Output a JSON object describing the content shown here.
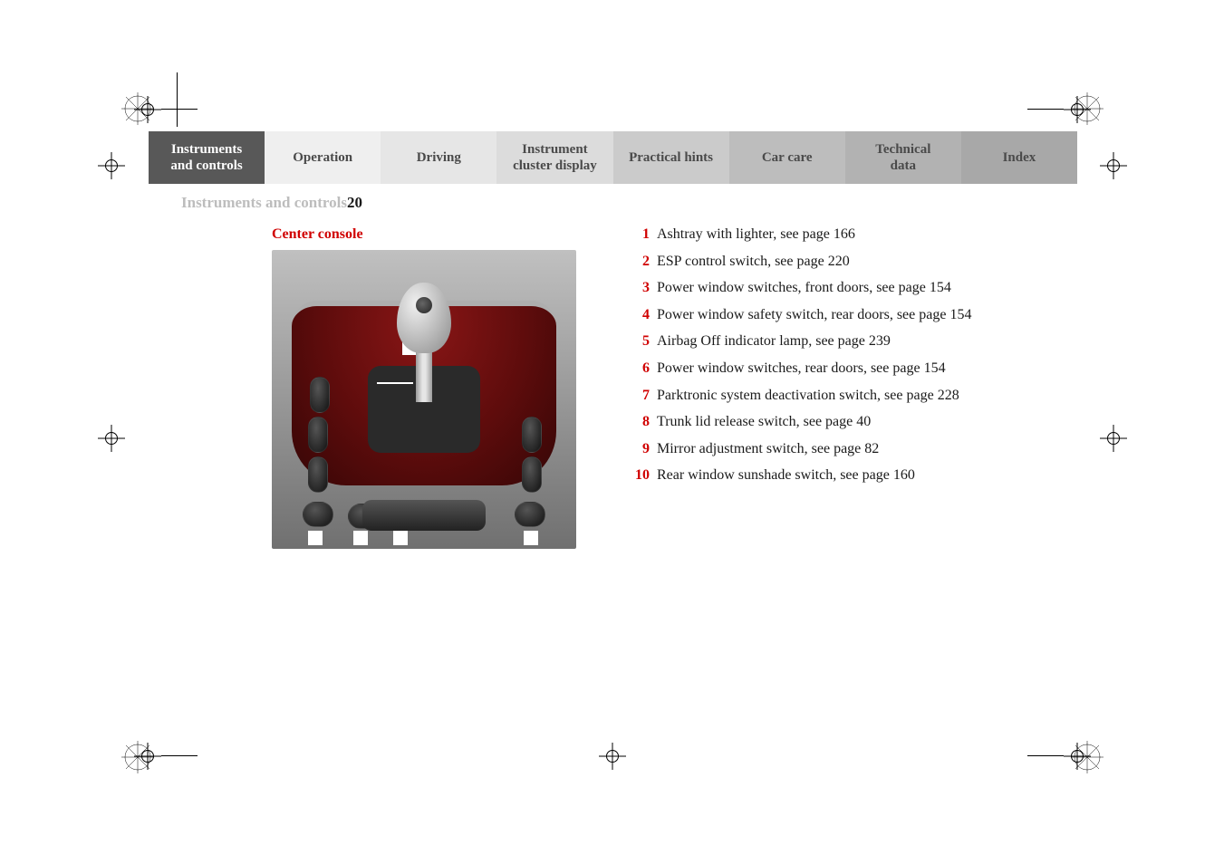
{
  "nav": {
    "items": [
      {
        "label": "Instruments and controls",
        "shade": "active"
      },
      {
        "label": "Operation",
        "shade": "shade1"
      },
      {
        "label": "Driving",
        "shade": "shade2"
      },
      {
        "label": "Instrument cluster display",
        "shade": "shade3"
      },
      {
        "label": "Practical hints",
        "shade": "shade4"
      },
      {
        "label": "Car care",
        "shade": "shade5"
      },
      {
        "label": "Technical data",
        "shade": "shade6"
      },
      {
        "label": "Index",
        "shade": "shade7"
      }
    ]
  },
  "section_title": "Instruments and controls",
  "page_number": "20",
  "heading": "Center console",
  "heading_color": "#d00000",
  "legend": [
    {
      "n": "1",
      "text": "Ashtray with lighter, see page 166"
    },
    {
      "n": "2",
      "text": "ESP control switch, see page 220"
    },
    {
      "n": "3",
      "text": "Power window switches, front doors, see page 154"
    },
    {
      "n": "4",
      "text": "Power window safety switch, rear doors, see page 154"
    },
    {
      "n": "5",
      "text": "Airbag Off indicator lamp, see page 239"
    },
    {
      "n": "6",
      "text": "Power window switches, rear doors, see page 154"
    },
    {
      "n": "7",
      "text": "Parktronic system deactivation switch, see page 228"
    },
    {
      "n": "8",
      "text": "Trunk lid release switch, see page 40"
    },
    {
      "n": "9",
      "text": "Mirror adjustment switch, see page 82"
    },
    {
      "n": "10",
      "text": "Rear window sunshade switch, see page 160"
    }
  ],
  "colors": {
    "accent_red": "#d00000",
    "nav_active": "#585858",
    "well_red": "#5e0c0c"
  }
}
